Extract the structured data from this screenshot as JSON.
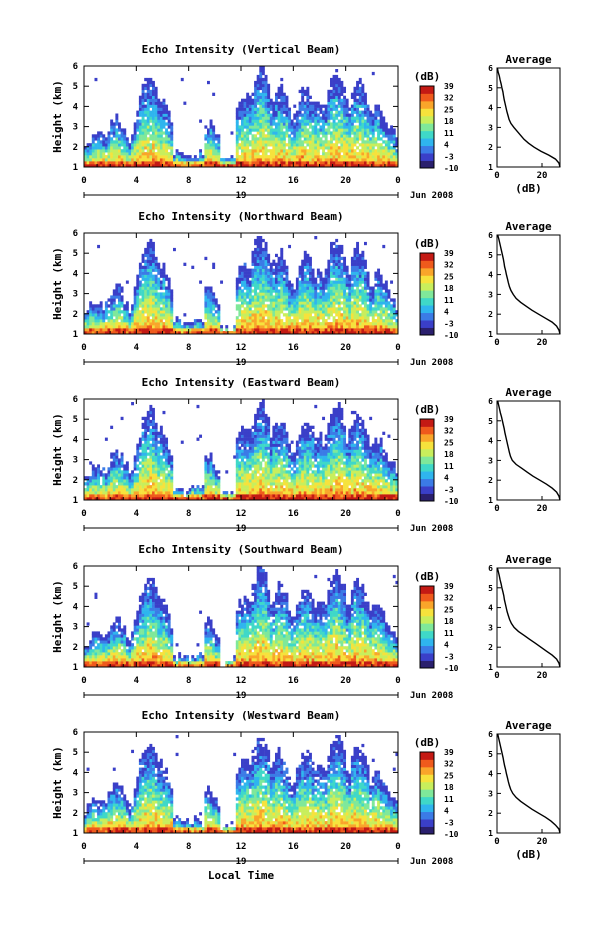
{
  "figure": {
    "footer_label": "Local Time",
    "date_label": "Jun 2008",
    "day_label": "19",
    "cbar_unit": "(dB)",
    "avg_title": "Average",
    "avg_xlabel": "(dB)",
    "colormap": [
      "#2a1f6d",
      "#3a3fc8",
      "#3b7be6",
      "#2fb5ee",
      "#3fd8c8",
      "#7fe89a",
      "#c8ee5c",
      "#f6e23c",
      "#f9a52a",
      "#ef5a1c",
      "#c41a14"
    ]
  },
  "chart_data": [
    {
      "type": "heatmap",
      "title": "Echo Intensity (Vertical Beam)",
      "ylabel": "Height (km)",
      "x_ticks": [
        "0",
        "4",
        "8",
        "12",
        "16",
        "20",
        "0"
      ],
      "y_ticks": [
        "1",
        "2",
        "3",
        "4",
        "5",
        "6"
      ],
      "xlim": [
        0,
        24
      ],
      "ylim": [
        1,
        6
      ],
      "colorbar_ticks": [
        "39",
        "32",
        "25",
        "18",
        "11",
        "4",
        "-3",
        "-10"
      ],
      "colorbar_range": [
        -10,
        39
      ],
      "average_profile": {
        "title": "Average",
        "xlabel": "(dB)",
        "x_ticks": [
          "0",
          "20"
        ],
        "y_ticks": [
          "1",
          "2",
          "3",
          "4",
          "5",
          "6"
        ],
        "xlim": [
          0,
          28
        ],
        "heights": [
          6.0,
          5.8,
          5.6,
          5.4,
          5.2,
          5.0,
          4.8,
          4.6,
          4.4,
          4.2,
          4.0,
          3.8,
          3.6,
          3.4,
          3.2,
          3.0,
          2.8,
          2.6,
          2.4,
          2.2,
          2.0,
          1.8,
          1.6,
          1.4,
          1.2,
          1.0
        ],
        "values": [
          0.2,
          0.5,
          1.0,
          1.4,
          1.8,
          2.2,
          2.6,
          2.9,
          3.2,
          3.6,
          4.0,
          4.4,
          4.9,
          5.4,
          6.2,
          7.5,
          9.0,
          10.5,
          12.0,
          14.0,
          16.5,
          19.5,
          23.0,
          26.0,
          27.5,
          28.0
        ]
      }
    },
    {
      "type": "heatmap",
      "title": "Echo Intensity (Northward Beam)",
      "ylabel": "Height (km)",
      "x_ticks": [
        "0",
        "4",
        "8",
        "12",
        "16",
        "20",
        "0"
      ],
      "y_ticks": [
        "1",
        "2",
        "3",
        "4",
        "5",
        "6"
      ],
      "xlim": [
        0,
        24
      ],
      "ylim": [
        1,
        6
      ],
      "colorbar_ticks": [
        "39",
        "32",
        "25",
        "18",
        "11",
        "4",
        "-3",
        "-10"
      ],
      "colorbar_range": [
        -10,
        39
      ],
      "average_profile": {
        "title": "Average",
        "xlabel": "",
        "x_ticks": [
          "0",
          "20"
        ],
        "y_ticks": [
          "1",
          "2",
          "3",
          "4",
          "5",
          "6"
        ],
        "xlim": [
          0,
          28
        ],
        "heights": [
          6.0,
          5.8,
          5.6,
          5.4,
          5.2,
          5.0,
          4.8,
          4.6,
          4.4,
          4.2,
          4.0,
          3.8,
          3.6,
          3.4,
          3.2,
          3.0,
          2.8,
          2.6,
          2.4,
          2.2,
          2.0,
          1.8,
          1.6,
          1.4,
          1.2,
          1.0
        ],
        "values": [
          0.3,
          0.8,
          1.2,
          1.6,
          2.0,
          2.4,
          2.8,
          3.1,
          3.4,
          3.8,
          4.2,
          4.6,
          5.0,
          5.5,
          6.2,
          7.2,
          8.5,
          10.5,
          13.0,
          15.5,
          18.5,
          21.5,
          24.5,
          26.5,
          27.5,
          28.0
        ]
      }
    },
    {
      "type": "heatmap",
      "title": "Echo Intensity (Eastward Beam)",
      "ylabel": "Height (km)",
      "x_ticks": [
        "0",
        "4",
        "8",
        "12",
        "16",
        "20",
        "0"
      ],
      "y_ticks": [
        "1",
        "2",
        "3",
        "4",
        "5",
        "6"
      ],
      "xlim": [
        0,
        24
      ],
      "ylim": [
        1,
        6
      ],
      "colorbar_ticks": [
        "39",
        "32",
        "25",
        "18",
        "11",
        "4",
        "-3",
        "-10"
      ],
      "colorbar_range": [
        -10,
        39
      ],
      "average_profile": {
        "title": "Average",
        "xlabel": "",
        "x_ticks": [
          "0",
          "20"
        ],
        "y_ticks": [
          "1",
          "2",
          "3",
          "4",
          "5",
          "6"
        ],
        "xlim": [
          0,
          28
        ],
        "heights": [
          6.0,
          5.8,
          5.6,
          5.4,
          5.2,
          5.0,
          4.8,
          4.6,
          4.4,
          4.2,
          4.0,
          3.8,
          3.6,
          3.4,
          3.2,
          3.0,
          2.8,
          2.6,
          2.4,
          2.2,
          2.0,
          1.8,
          1.6,
          1.4,
          1.2,
          1.0
        ],
        "values": [
          0.3,
          0.7,
          1.1,
          1.5,
          2.0,
          2.4,
          2.8,
          3.2,
          3.5,
          3.9,
          4.3,
          4.7,
          5.1,
          5.5,
          6.0,
          6.8,
          8.5,
          11.0,
          13.5,
          16.0,
          19.0,
          22.0,
          24.5,
          26.5,
          27.5,
          28.0
        ]
      }
    },
    {
      "type": "heatmap",
      "title": "Echo Intensity (Southward Beam)",
      "ylabel": "Height (km)",
      "x_ticks": [
        "0",
        "4",
        "8",
        "12",
        "16",
        "20",
        "0"
      ],
      "y_ticks": [
        "1",
        "2",
        "3",
        "4",
        "5",
        "6"
      ],
      "xlim": [
        0,
        24
      ],
      "ylim": [
        1,
        6
      ],
      "colorbar_ticks": [
        "39",
        "32",
        "25",
        "18",
        "11",
        "4",
        "-3",
        "-10"
      ],
      "colorbar_range": [
        -10,
        39
      ],
      "average_profile": {
        "title": "Average",
        "xlabel": "",
        "x_ticks": [
          "0",
          "20"
        ],
        "y_ticks": [
          "1",
          "2",
          "3",
          "4",
          "5",
          "6"
        ],
        "xlim": [
          0,
          28
        ],
        "heights": [
          6.0,
          5.8,
          5.6,
          5.4,
          5.2,
          5.0,
          4.8,
          4.6,
          4.4,
          4.2,
          4.0,
          3.8,
          3.6,
          3.4,
          3.2,
          3.0,
          2.8,
          2.6,
          2.4,
          2.2,
          2.0,
          1.8,
          1.6,
          1.4,
          1.2,
          1.0
        ],
        "values": [
          0.2,
          0.6,
          1.0,
          1.4,
          1.8,
          2.2,
          2.6,
          3.0,
          3.3,
          3.7,
          4.1,
          4.5,
          5.0,
          5.6,
          6.4,
          7.6,
          9.5,
          12.0,
          14.5,
          17.0,
          19.5,
          22.0,
          24.5,
          26.5,
          27.5,
          28.0
        ]
      }
    },
    {
      "type": "heatmap",
      "title": "Echo Intensity (Westward Beam)",
      "ylabel": "Height (km)",
      "xlabel": "Local Time",
      "x_ticks": [
        "0",
        "4",
        "8",
        "12",
        "16",
        "20",
        "0"
      ],
      "y_ticks": [
        "1",
        "2",
        "3",
        "4",
        "5",
        "6"
      ],
      "xlim": [
        0,
        24
      ],
      "ylim": [
        1,
        6
      ],
      "colorbar_ticks": [
        "39",
        "32",
        "25",
        "18",
        "11",
        "4",
        "-3",
        "-10"
      ],
      "colorbar_range": [
        -10,
        39
      ],
      "average_profile": {
        "title": "Average",
        "xlabel": "(dB)",
        "x_ticks": [
          "0",
          "20"
        ],
        "y_ticks": [
          "1",
          "2",
          "3",
          "4",
          "5",
          "6"
        ],
        "xlim": [
          0,
          28
        ],
        "heights": [
          6.0,
          5.8,
          5.6,
          5.4,
          5.2,
          5.0,
          4.8,
          4.6,
          4.4,
          4.2,
          4.0,
          3.8,
          3.6,
          3.4,
          3.2,
          3.0,
          2.8,
          2.6,
          2.4,
          2.2,
          2.0,
          1.8,
          1.6,
          1.4,
          1.2,
          1.0
        ],
        "values": [
          0.3,
          0.7,
          1.1,
          1.5,
          1.9,
          2.3,
          2.7,
          3.0,
          3.4,
          3.8,
          4.2,
          4.6,
          5.0,
          5.5,
          6.1,
          7.0,
          8.5,
          10.5,
          13.0,
          15.5,
          18.5,
          21.5,
          24.0,
          26.0,
          27.5,
          28.0
        ]
      }
    }
  ]
}
